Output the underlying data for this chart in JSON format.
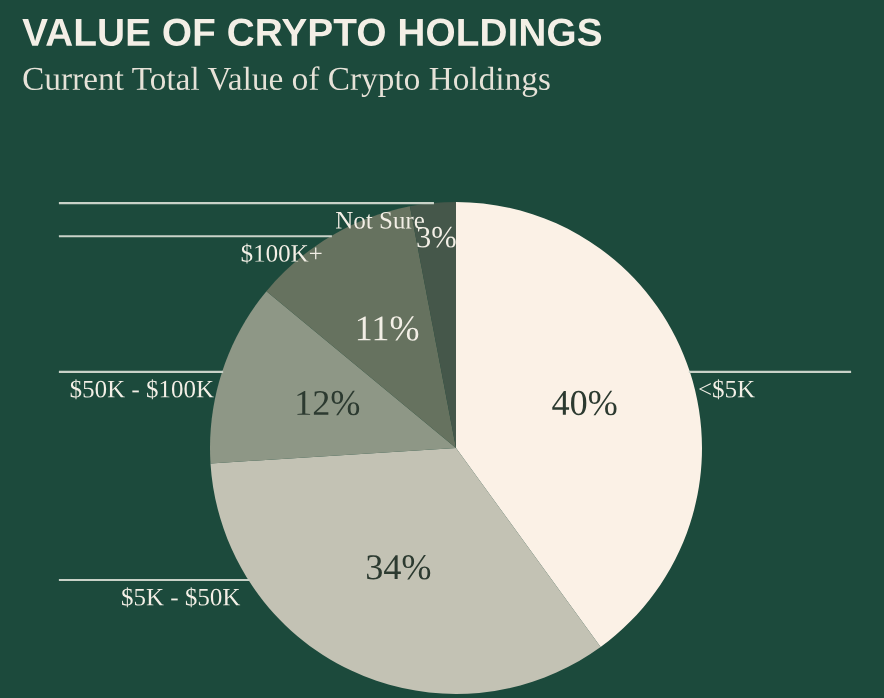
{
  "chart_data": {
    "type": "pie",
    "title": "VALUE OF CRYPTO HOLDINGS",
    "subtitle": "Current Total Value of Crypto Holdings",
    "categories": [
      "<$5K",
      "$5K - $50K",
      "$50K - $100K",
      "$100K+",
      "Not Sure"
    ],
    "values": [
      40,
      34,
      12,
      11,
      3
    ],
    "value_labels": [
      "40%",
      "34%",
      "12%",
      "11%",
      "3%"
    ],
    "colors": [
      "#fbf1e6",
      "#c3c2b4",
      "#8e9786",
      "#66725f",
      "#45574a"
    ],
    "legend": false
  }
}
